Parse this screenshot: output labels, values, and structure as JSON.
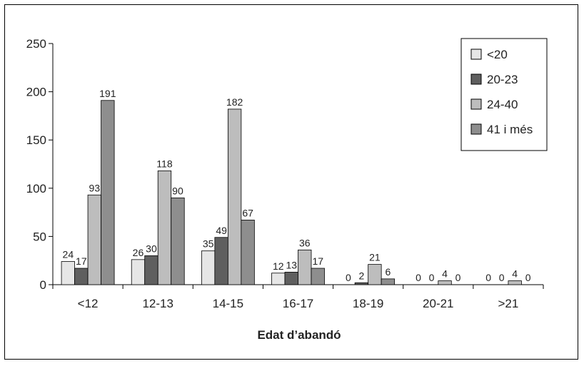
{
  "chart_data": {
    "type": "bar",
    "title": "",
    "xlabel": "Edat d’abandó",
    "ylabel": "",
    "categories": [
      "<12",
      "12-13",
      "14-15",
      "16-17",
      "18-19",
      "20-21",
      ">21"
    ],
    "series": [
      {
        "name": "<20",
        "color": "#e6e6e6",
        "values": [
          24,
          26,
          35,
          12,
          0,
          0,
          0
        ]
      },
      {
        "name": "20-23",
        "color": "#5f5f5f",
        "values": [
          17,
          30,
          49,
          13,
          2,
          0,
          0
        ]
      },
      {
        "name": "24-40",
        "color": "#bdbdbd",
        "values": [
          93,
          118,
          182,
          36,
          21,
          4,
          4
        ]
      },
      {
        "name": "41 i més",
        "color": "#8e8e8e",
        "values": [
          191,
          90,
          67,
          17,
          6,
          0,
          0
        ]
      }
    ],
    "ylim": [
      0,
      250
    ],
    "yticks": [
      0,
      50,
      100,
      150,
      200,
      250
    ],
    "grid": false,
    "legend_position": "top-right"
  }
}
